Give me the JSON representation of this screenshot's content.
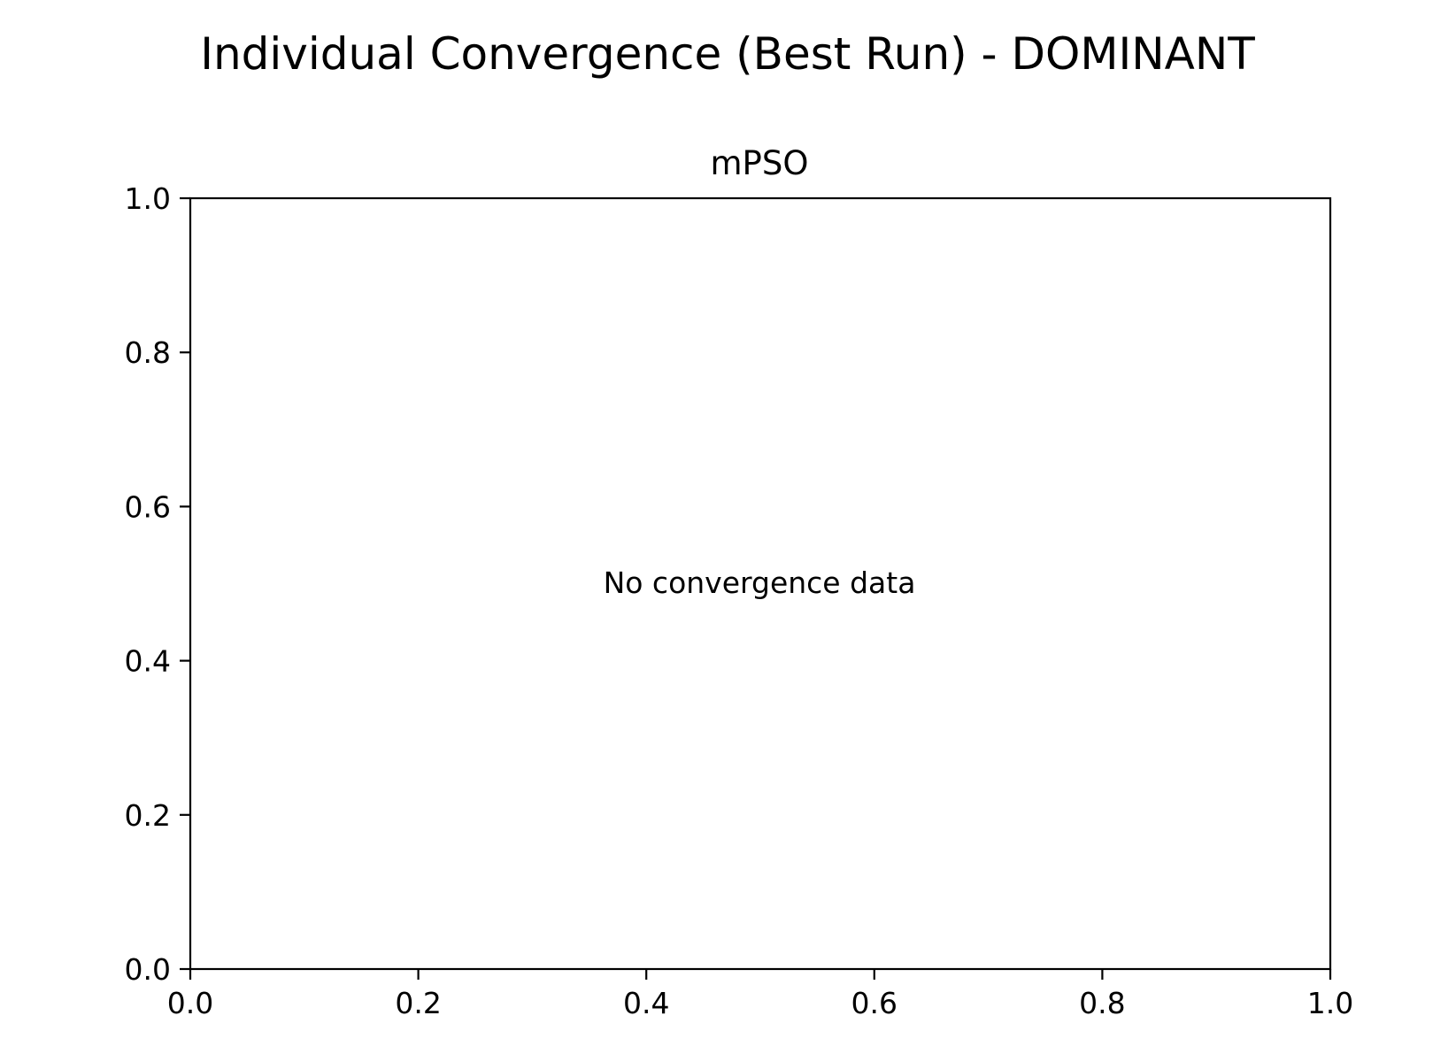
{
  "chart_data": {
    "type": "line",
    "suptitle": "Individual Convergence (Best Run) - DOMINANT",
    "title": "mPSO",
    "xlabel": "",
    "ylabel": "",
    "xlim": [
      0.0,
      1.0
    ],
    "ylim": [
      0.0,
      1.0
    ],
    "x_ticks": [
      0.0,
      0.2,
      0.4,
      0.6,
      0.8,
      1.0
    ],
    "y_ticks": [
      0.0,
      0.2,
      0.4,
      0.6,
      0.8,
      1.0
    ],
    "x_tick_labels": [
      "0.0",
      "0.2",
      "0.4",
      "0.6",
      "0.8",
      "1.0"
    ],
    "y_tick_labels": [
      "0.0",
      "0.2",
      "0.4",
      "0.6",
      "0.8",
      "1.0"
    ],
    "series": [],
    "annotation": "No convergence data",
    "grid": false,
    "colors": {
      "axes": "#000000",
      "background": "#ffffff",
      "text": "#000000"
    }
  }
}
